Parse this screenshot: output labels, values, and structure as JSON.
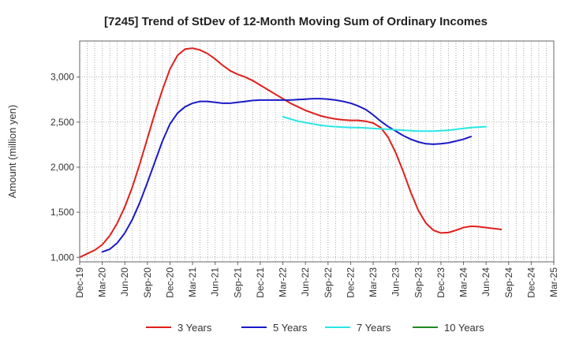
{
  "chart_data": {
    "type": "line",
    "title": "[7245]  Trend of StDev of 12-Month Moving Sum of Ordinary Incomes",
    "xlabel": "",
    "ylabel": "Amount (million yen)",
    "ylim": [
      950,
      3400
    ],
    "yticks": [
      1000,
      1500,
      2000,
      2500,
      3000
    ],
    "ytick_labels": [
      "1,000",
      "1,500",
      "2,000",
      "2,500",
      "3,000"
    ],
    "x_tick_labels": [
      "Dec-19",
      "Mar-20",
      "Jun-20",
      "Sep-20",
      "Dec-20",
      "Mar-21",
      "Jun-21",
      "Sep-21",
      "Dec-21",
      "Mar-22",
      "Jun-22",
      "Sep-22",
      "Dec-22",
      "Mar-23",
      "Jun-23",
      "Sep-23",
      "Dec-23",
      "Mar-24",
      "Jun-24",
      "Sep-24",
      "Dec-24",
      "Mar-25"
    ],
    "x_months_total": 63,
    "grid": true,
    "legend_position": "bottom",
    "series": [
      {
        "name": "3 Years",
        "color": "#e0201b",
        "start_month": 0,
        "values": [
          1000,
          1040,
          1080,
          1140,
          1240,
          1380,
          1560,
          1780,
          2040,
          2320,
          2600,
          2860,
          3090,
          3240,
          3310,
          3320,
          3300,
          3260,
          3200,
          3130,
          3070,
          3030,
          3000,
          2960,
          2910,
          2860,
          2810,
          2760,
          2710,
          2670,
          2630,
          2600,
          2570,
          2550,
          2535,
          2525,
          2520,
          2520,
          2510,
          2490,
          2440,
          2330,
          2160,
          1950,
          1720,
          1520,
          1380,
          1300,
          1270,
          1275,
          1300,
          1330,
          1345,
          1340,
          1330,
          1320,
          1310
        ]
      },
      {
        "name": "5 Years",
        "color": "#1a1ac8",
        "start_month": 3,
        "values": [
          1060,
          1090,
          1160,
          1270,
          1420,
          1610,
          1830,
          2060,
          2290,
          2480,
          2600,
          2670,
          2710,
          2730,
          2730,
          2720,
          2710,
          2710,
          2720,
          2730,
          2740,
          2745,
          2745,
          2745,
          2745,
          2745,
          2750,
          2755,
          2760,
          2760,
          2755,
          2745,
          2730,
          2710,
          2680,
          2640,
          2580,
          2510,
          2450,
          2400,
          2350,
          2310,
          2280,
          2260,
          2255,
          2260,
          2270,
          2290,
          2310,
          2340
        ]
      },
      {
        "name": "7 Years",
        "color": "#28e6e6",
        "start_month": 27,
        "values": [
          2560,
          2535,
          2510,
          2495,
          2480,
          2465,
          2455,
          2450,
          2445,
          2440,
          2440,
          2435,
          2430,
          2425,
          2420,
          2415,
          2410,
          2405,
          2400,
          2400,
          2400,
          2405,
          2410,
          2420,
          2430,
          2440,
          2445,
          2450
        ]
      },
      {
        "name": "10 Years",
        "color": "#1f8a1f",
        "start_month": 0,
        "values": []
      }
    ]
  }
}
